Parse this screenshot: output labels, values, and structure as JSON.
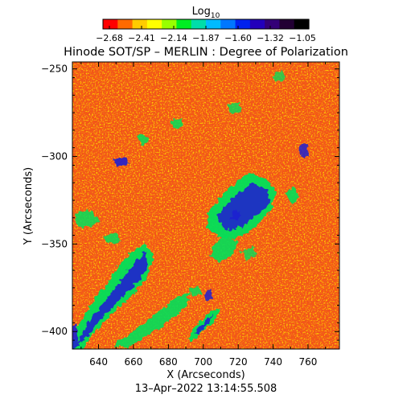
{
  "figure": {
    "title": "Hinode SOT/SP – MERLIN : Degree of Polarization",
    "timestamp": "13–Apr–2022  13:14:55.508"
  },
  "colorbar": {
    "label_main": "Log",
    "label_sub": "10",
    "ticks": [
      "−2.68",
      "−2.41",
      "−2.14",
      "−1.87",
      "−1.60",
      "−1.32",
      "−1.05"
    ],
    "colors": [
      "#ff0000",
      "#ff6a00",
      "#ffcc00",
      "#ffff00",
      "#99ff00",
      "#00ee22",
      "#00ddaa",
      "#00bbff",
      "#0077ff",
      "#0022ee",
      "#2200bb",
      "#330077",
      "#220033",
      "#000000"
    ]
  },
  "chart_data": {
    "type": "heatmap",
    "xlabel": "X (Arcseconds)",
    "ylabel": "Y (Arcseconds)",
    "xlim": [
      625,
      778
    ],
    "ylim": [
      -410,
      -246
    ],
    "x_ticks": [
      "640",
      "660",
      "680",
      "700",
      "720",
      "740",
      "760"
    ],
    "x_tick_values": [
      640,
      660,
      680,
      700,
      720,
      740,
      760
    ],
    "y_ticks": [
      "−250",
      "−300",
      "−350",
      "−400"
    ],
    "y_tick_values": [
      -250,
      -300,
      -350,
      -400
    ],
    "colormap_range": [
      -2.68,
      -1.05
    ],
    "map_colors": {
      "background": "#f0551e",
      "low": "#ff2a00",
      "mid_high": "#ffb400",
      "high": "#00e05a",
      "very_high": "#1f1fd0"
    }
  }
}
